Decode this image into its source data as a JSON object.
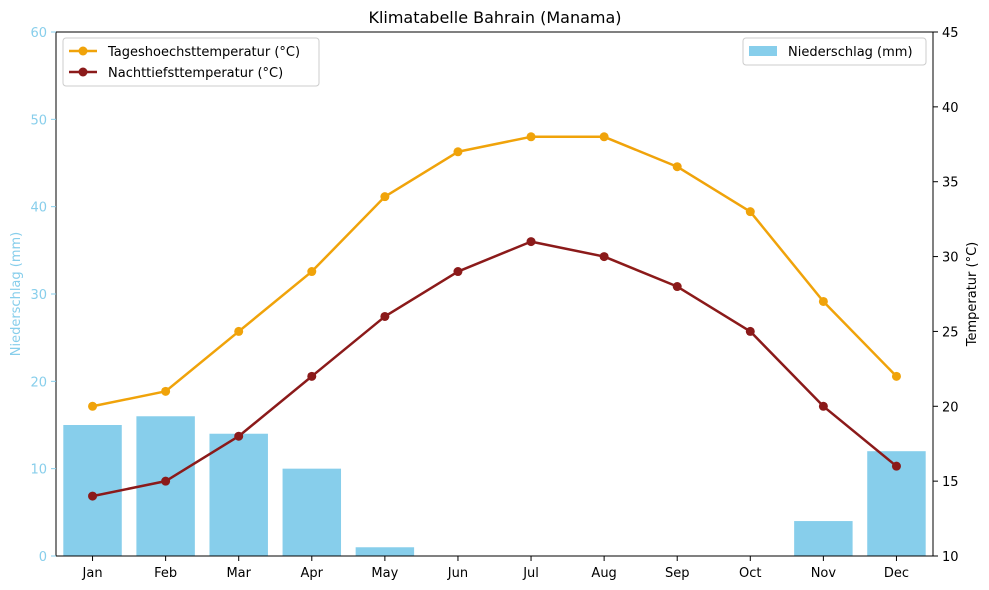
{
  "chart_data": {
    "type": "bar+line",
    "title": "Klimatabelle Bahrain (Manama)",
    "categories": [
      "Jan",
      "Feb",
      "Mar",
      "Apr",
      "May",
      "Jun",
      "Jul",
      "Aug",
      "Sep",
      "Oct",
      "Nov",
      "Dec"
    ],
    "bars": {
      "name": "Niederschlag (mm)",
      "axis": "left",
      "values": [
        15,
        16,
        14,
        10,
        1,
        0,
        0,
        0,
        0,
        0,
        4,
        12
      ],
      "color": "#87ceeb"
    },
    "series": [
      {
        "name": "Tageshoechsttemperatur (°C)",
        "axis": "right",
        "values": [
          20,
          21,
          25,
          29,
          34,
          37,
          38,
          38,
          36,
          33,
          27,
          22
        ],
        "color": "#f0a30a"
      },
      {
        "name": "Nachttiefsttemperatur (°C)",
        "axis": "right",
        "values": [
          14,
          15,
          18,
          22,
          26,
          29,
          31,
          30,
          28,
          25,
          20,
          16
        ],
        "color": "#8b1a1a"
      }
    ],
    "ylabel_left": "Niederschlag (mm)",
    "ylabel_right": "Temperatur (°C)",
    "ylim_left": [
      0,
      60
    ],
    "ylim_right": [
      10,
      45
    ],
    "yticks_left": [
      0,
      10,
      20,
      30,
      40,
      50,
      60
    ],
    "yticks_right": [
      10,
      15,
      20,
      25,
      30,
      35,
      40,
      45
    ],
    "left_axis_color": "#87ceeb",
    "grid": false,
    "legend_lines_position": "top-left",
    "legend_bars_position": "top-right"
  }
}
